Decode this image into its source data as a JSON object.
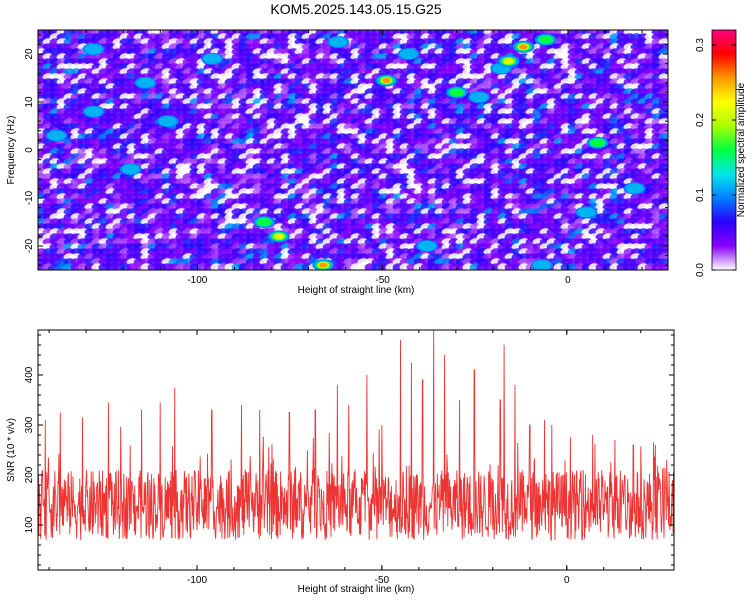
{
  "title": "KOM5.2025.143.05.15.G25",
  "chart_data": [
    {
      "type": "heatmap",
      "xlabel": "Height of straight line (km)",
      "ylabel": "Frequency (Hz)",
      "xlim": [
        -143,
        27
      ],
      "ylim": [
        -25,
        25
      ],
      "x_ticks": [
        -100,
        -50,
        0
      ],
      "x_tick_labels": [
        "-100",
        "-50",
        "0"
      ],
      "y_ticks": [
        -20,
        -10,
        0,
        10,
        20
      ],
      "y_tick_labels": [
        "-20",
        "-10",
        "0",
        "10",
        "20"
      ],
      "colorbar": {
        "label": "Normalized spectral amplitude",
        "range": [
          0.0,
          0.32
        ],
        "ticks": [
          0.0,
          0.1,
          0.2,
          0.3
        ],
        "tick_labels": [
          "0.0",
          "0.1",
          "0.2",
          "0.3"
        ],
        "colors": [
          "#ffffff",
          "#8a00ff",
          "#2a00ff",
          "#0080ff",
          "#00e8e8",
          "#00ff40",
          "#aaff00",
          "#ffff00",
          "#ff9900",
          "#ff0000",
          "#ff0080"
        ]
      },
      "hotspots": [
        {
          "x": -128,
          "y": 21,
          "v": 0.14
        },
        {
          "x": -114,
          "y": 14,
          "v": 0.12
        },
        {
          "x": -128,
          "y": 8,
          "v": 0.1
        },
        {
          "x": -108,
          "y": 6,
          "v": 0.11
        },
        {
          "x": -82,
          "y": -15,
          "v": 0.16
        },
        {
          "x": -78,
          "y": -18,
          "v": 0.22
        },
        {
          "x": -66,
          "y": -24,
          "v": 0.27
        },
        {
          "x": -62,
          "y": 22.5,
          "v": 0.12
        },
        {
          "x": -49,
          "y": 14.5,
          "v": 0.28
        },
        {
          "x": -43,
          "y": 20,
          "v": 0.12
        },
        {
          "x": -30,
          "y": 12,
          "v": 0.18
        },
        {
          "x": -24,
          "y": 11,
          "v": 0.14
        },
        {
          "x": -18,
          "y": 17,
          "v": 0.1
        },
        {
          "x": -16,
          "y": 18.5,
          "v": 0.22
        },
        {
          "x": -12,
          "y": 21.5,
          "v": 0.26
        },
        {
          "x": -6,
          "y": 23,
          "v": 0.18
        },
        {
          "x": 8,
          "y": 1.5,
          "v": 0.18
        },
        {
          "x": -118,
          "y": -4,
          "v": 0.1
        },
        {
          "x": -138,
          "y": 3,
          "v": 0.1
        },
        {
          "x": -7,
          "y": -24,
          "v": 0.12
        },
        {
          "x": 5,
          "y": -13,
          "v": 0.1
        },
        {
          "x": -38,
          "y": -20,
          "v": 0.1
        },
        {
          "x": 18,
          "y": -8,
          "v": 0.11
        },
        {
          "x": -96,
          "y": 19,
          "v": 0.1
        }
      ]
    },
    {
      "type": "line",
      "xlabel": "Height of straight line (km)",
      "ylabel": "SNR (10 * v/v)",
      "xlim": [
        -143,
        29
      ],
      "ylim": [
        10,
        490
      ],
      "x_ticks": [
        -100,
        -50,
        0
      ],
      "x_tick_labels": [
        "-100",
        "-50",
        "0"
      ],
      "y_ticks": [
        100,
        200,
        300,
        400
      ],
      "y_tick_labels": [
        "100",
        "200",
        "300",
        "400"
      ],
      "series": [
        {
          "color": "#ee3333",
          "baseline": 140,
          "spread": 70,
          "peaks": [
            {
              "x": -141,
              "y": 310
            },
            {
              "x": -137,
              "y": 325
            },
            {
              "x": -131,
              "y": 315
            },
            {
              "x": -124,
              "y": 345
            },
            {
              "x": -115,
              "y": 330
            },
            {
              "x": -110,
              "y": 345
            },
            {
              "x": -106,
              "y": 375
            },
            {
              "x": -96,
              "y": 330
            },
            {
              "x": -88,
              "y": 340
            },
            {
              "x": -83,
              "y": 330
            },
            {
              "x": -75,
              "y": 325
            },
            {
              "x": -68,
              "y": 330
            },
            {
              "x": -62,
              "y": 380
            },
            {
              "x": -59,
              "y": 340
            },
            {
              "x": -54,
              "y": 400
            },
            {
              "x": -50,
              "y": 300
            },
            {
              "x": -45,
              "y": 470
            },
            {
              "x": -42,
              "y": 425
            },
            {
              "x": -39,
              "y": 390
            },
            {
              "x": -36,
              "y": 490
            },
            {
              "x": -33,
              "y": 440
            },
            {
              "x": -29,
              "y": 350
            },
            {
              "x": -25,
              "y": 410
            },
            {
              "x": -18,
              "y": 350
            },
            {
              "x": -17,
              "y": 460
            },
            {
              "x": -14,
              "y": 380
            },
            {
              "x": -10,
              "y": 300
            },
            {
              "x": -6,
              "y": 310
            },
            {
              "x": -4,
              "y": 300
            },
            {
              "x": 1,
              "y": 275
            },
            {
              "x": 7,
              "y": 280
            },
            {
              "x": 13,
              "y": 270
            },
            {
              "x": 18,
              "y": 260
            },
            {
              "x": 24,
              "y": 260
            },
            {
              "x": 27,
              "y": 230
            }
          ]
        }
      ]
    }
  ]
}
